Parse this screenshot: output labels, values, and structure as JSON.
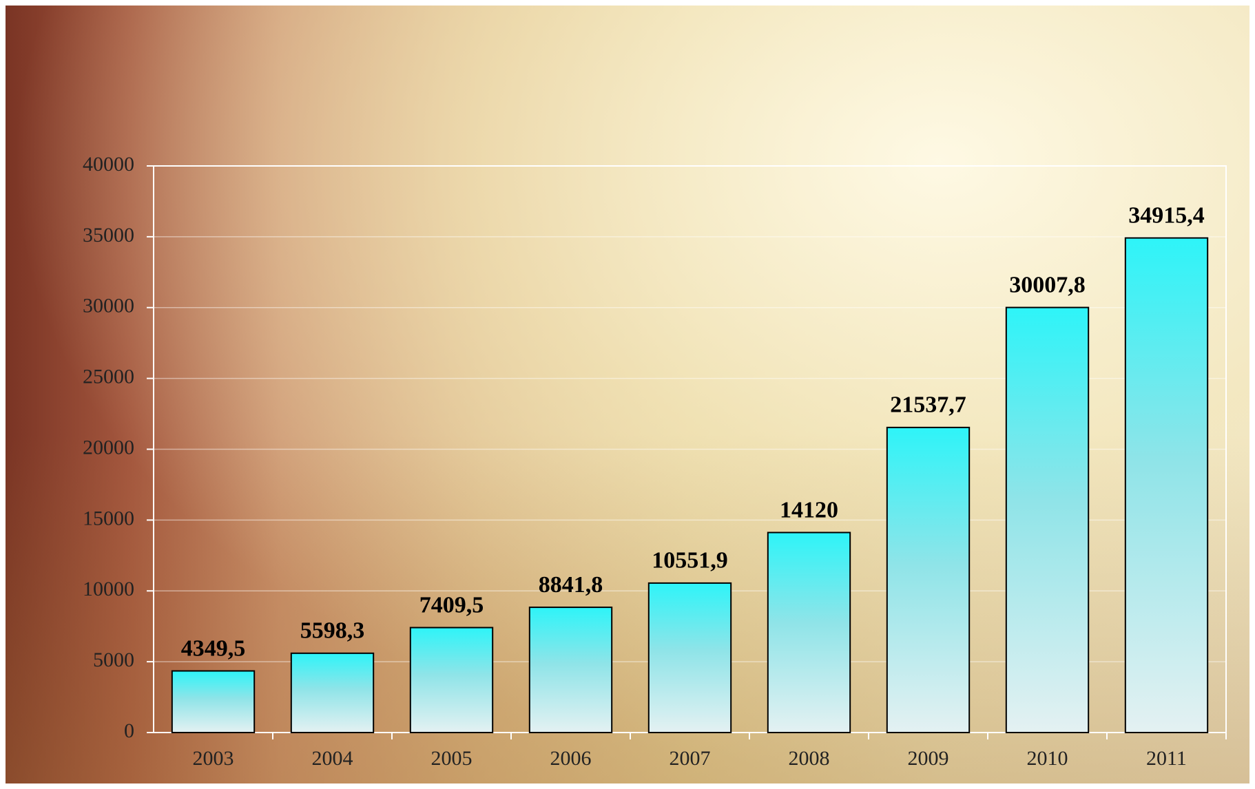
{
  "chart_data": {
    "type": "bar",
    "categories": [
      "2003",
      "2004",
      "2005",
      "2006",
      "2007",
      "2008",
      "2009",
      "2010",
      "2011"
    ],
    "values": [
      4349.5,
      5598.3,
      7409.5,
      8841.8,
      10551.9,
      14120,
      21537.7,
      30007.8,
      34915.4
    ],
    "value_labels": [
      "4349,5",
      "5598,3",
      "7409,5",
      "8841,8",
      "10551,9",
      "14120",
      "21537,7",
      "30007,8",
      "34915,4"
    ],
    "color": "#2ef4f8",
    "ylim": [
      0,
      40000
    ],
    "yticks": [
      0,
      5000,
      10000,
      15000,
      20000,
      25000,
      30000,
      35000,
      40000
    ],
    "grid": true
  }
}
